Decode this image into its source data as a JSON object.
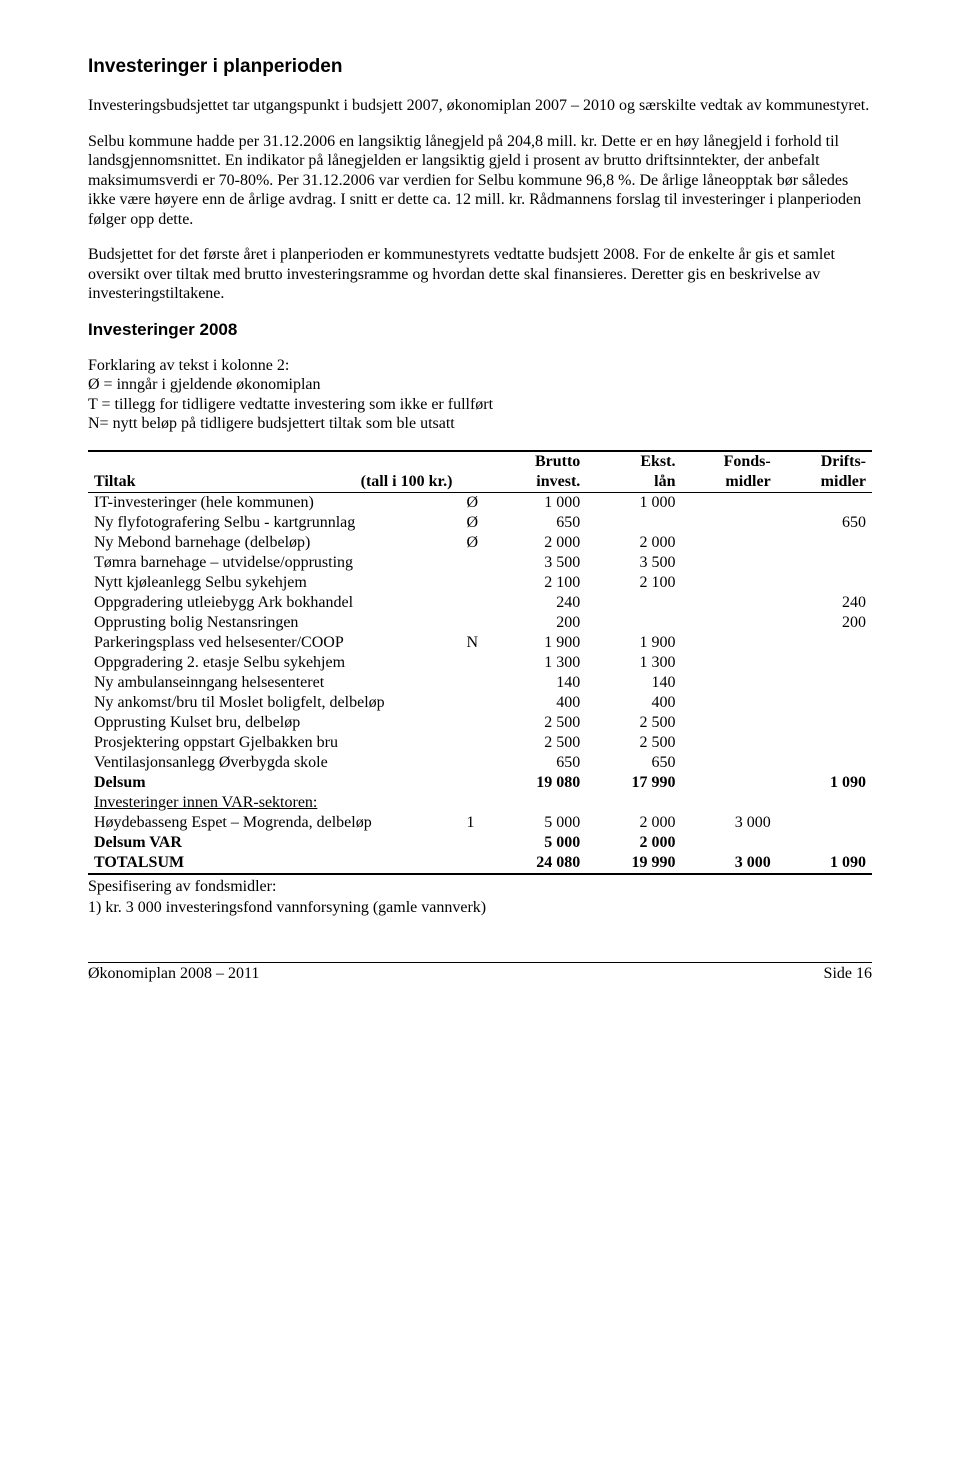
{
  "heading1": "Investeringer i planperioden",
  "para1": "Investeringsbudsjettet tar utgangspunkt i budsjett 2007, økonomiplan 2007 – 2010 og særskilte vedtak av kommunestyret.",
  "para2": "Selbu kommune hadde per 31.12.2006 en langsiktig lånegjeld på 204,8 mill. kr. Dette er en høy lånegjeld i forhold til landsgjennomsnittet. En indikator på lånegjelden er langsiktig gjeld i prosent av brutto driftsinntekter, der anbefalt maksimumsverdi er 70-80%. Per 31.12.2006 var verdien for Selbu kommune 96,8 %. De årlige låneopptak bør således ikke være høyere enn de årlige avdrag. I snitt er dette ca. 12 mill. kr. Rådmannens forslag til investeringer i planperioden følger opp dette.",
  "para3": "Budsjettet for det første året i planperioden er kommunestyrets vedtatte budsjett 2008. For de enkelte år gis et samlet oversikt over tiltak med brutto investeringsramme og hvordan dette skal finansieres. Deretter gis en beskrivelse av investeringstiltakene.",
  "heading2": "Investeringer 2008",
  "legend_intro": "Forklaring av tekst i kolonne 2:",
  "legend1": "Ø = inngår i gjeldende økonomiplan",
  "legend2": "T = tillegg for tidligere vedtatte investering som ikke er fullført",
  "legend3": "N= nytt beløp på tidligere budsjettert tiltak som ble utsatt",
  "table": {
    "header": {
      "tiltak_label": "Tiltak",
      "tiltak_note": "(tall i 100 kr.)",
      "c1a": "Brutto",
      "c1b": "invest.",
      "c2a": "Ekst.",
      "c2b": "lån",
      "c3a": "Fonds-",
      "c3b": "midler",
      "c4a": "Drifts-",
      "c4b": "midler"
    },
    "rows": [
      {
        "label": "IT-investeringer (hele kommunen)",
        "code": "Ø",
        "v": [
          "1 000",
          "1 000",
          "",
          ""
        ]
      },
      {
        "label": "Ny flyfotografering Selbu - kartgrunnlag",
        "code": "Ø",
        "v": [
          "650",
          "",
          "",
          "650"
        ]
      },
      {
        "label": "Ny Mebond barnehage (delbeløp)",
        "code": "Ø",
        "v": [
          "2 000",
          "2 000",
          "",
          ""
        ]
      },
      {
        "label": "Tømra barnehage – utvidelse/opprusting",
        "code": "",
        "v": [
          "3 500",
          "3 500",
          "",
          ""
        ]
      },
      {
        "label": "Nytt kjøleanlegg Selbu sykehjem",
        "code": "",
        "v": [
          "2 100",
          "2 100",
          "",
          ""
        ]
      },
      {
        "label": "Oppgradering utleiebygg Ark bokhandel",
        "code": "",
        "v": [
          "240",
          "",
          "",
          "240"
        ]
      },
      {
        "label": "Opprusting bolig Nestansringen",
        "code": "",
        "v": [
          "200",
          "",
          "",
          "200"
        ]
      },
      {
        "label": "Parkeringsplass ved helsesenter/COOP",
        "code": "N",
        "v": [
          "1 900",
          "1 900",
          "",
          ""
        ]
      },
      {
        "label": "Oppgradering 2. etasje Selbu sykehjem",
        "code": "",
        "v": [
          "1 300",
          "1 300",
          "",
          ""
        ]
      },
      {
        "label": "Ny ambulanseinngang helsesenteret",
        "code": "",
        "v": [
          "140",
          "140",
          "",
          ""
        ]
      },
      {
        "label": "Ny ankomst/bru til Moslet boligfelt, delbeløp",
        "code": "",
        "v": [
          "400",
          "400",
          "",
          ""
        ]
      },
      {
        "label": "Opprusting Kulset bru, delbeløp",
        "code": "",
        "v": [
          "2 500",
          "2 500",
          "",
          ""
        ]
      },
      {
        "label": "Prosjektering oppstart Gjelbakken bru",
        "code": "",
        "v": [
          "2 500",
          "2 500",
          "",
          ""
        ]
      },
      {
        "label": "Ventilasjonsanlegg Øverbygda skole",
        "code": "",
        "v": [
          "650",
          "650",
          "",
          ""
        ]
      },
      {
        "label": "Delsum",
        "code": "",
        "v": [
          "19 080",
          "17 990",
          "",
          "1 090"
        ],
        "bold": true
      },
      {
        "label": "Investeringer innen VAR-sektoren:",
        "code": "",
        "v": [
          "",
          "",
          "",
          ""
        ],
        "underline": true
      },
      {
        "label": "Høydebasseng Espet – Mogrenda, delbeløp",
        "code": "1",
        "v": [
          "5 000",
          "2 000",
          "3 000",
          ""
        ]
      },
      {
        "label": "Delsum VAR",
        "code": "",
        "v": [
          "5 000",
          "2 000",
          "",
          ""
        ],
        "bold": true
      },
      {
        "label": "TOTALSUM",
        "code": "",
        "v": [
          "24 080",
          "19 990",
          "3 000",
          "1 090"
        ],
        "bold": true,
        "last": true
      }
    ]
  },
  "after1": "Spesifisering av fondsmidler:",
  "after2": "1)  kr. 3 000 investeringsfond vannforsyning (gamle vannverk)",
  "footer_left": "Økonomiplan 2008 – 2011",
  "footer_right": "Side 16"
}
